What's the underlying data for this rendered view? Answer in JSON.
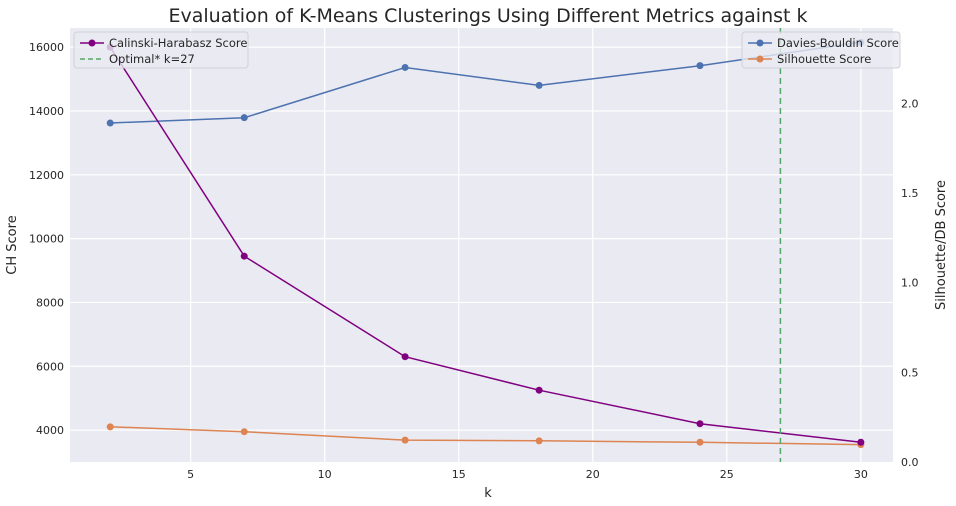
{
  "chart_data": {
    "type": "line",
    "title": "Evaluation of K-Means Clusterings Using Different Metrics against k",
    "xlabel": "k",
    "ylabel_left": "CH Score",
    "ylabel_right": "Silhouette/DB Score",
    "x": [
      2,
      7,
      13,
      18,
      24,
      30
    ],
    "xlim": [
      0.5,
      31.2
    ],
    "ylim_left": [
      3000,
      16600
    ],
    "ylim_right": [
      0.0,
      2.42
    ],
    "xticks": [
      5,
      10,
      15,
      20,
      25,
      30
    ],
    "yticks_left": [
      4000,
      6000,
      8000,
      10000,
      12000,
      14000,
      16000
    ],
    "yticks_right": [
      0.0,
      0.5,
      1.0,
      1.5,
      2.0
    ],
    "yticklabels_right": [
      "0.0",
      "0.5",
      "1.0",
      "1.5",
      "2.0"
    ],
    "grid": true,
    "series_left": [
      {
        "name": "Calinski-Harabasz Score",
        "color": "#800080",
        "values": [
          16000,
          9450,
          6300,
          5250,
          4200,
          3620
        ]
      }
    ],
    "series_right": [
      {
        "name": "Davies-Bouldin Score",
        "color": "#4c72b0",
        "values": [
          1.89,
          1.92,
          2.2,
          2.1,
          2.21,
          2.34
        ]
      },
      {
        "name": "Silhouette Score",
        "color": "#dd8452",
        "values": [
          0.196,
          0.169,
          0.122,
          0.118,
          0.11,
          0.097
        ]
      }
    ],
    "vline": {
      "x": 27,
      "name": "Optimal* k=27",
      "color": "#55a868",
      "style": "dashed"
    },
    "legend_left_position": "top-left",
    "legend_right_position": "top-right"
  }
}
